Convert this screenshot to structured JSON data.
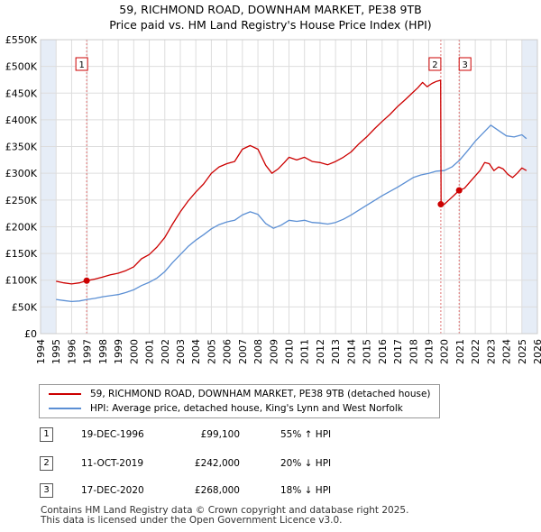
{
  "title": {
    "line1": "59, RICHMOND ROAD, DOWNHAM MARKET, PE38 9TB",
    "line2": "Price paid vs. HM Land Registry's House Price Index (HPI)"
  },
  "colors": {
    "property": "#cc0000",
    "hpi": "#5b8fd4",
    "grid": "#dddddd",
    "plot_bg": "#ffffff",
    "shade": "#e6edf7",
    "vline": "#e07070"
  },
  "chart_data": {
    "type": "line",
    "title": "Price paid vs. HM Land Registry's House Price Index (HPI)",
    "xlabel": "",
    "ylabel": "",
    "xlim": [
      1994,
      2026
    ],
    "ylim": [
      0,
      550000
    ],
    "grid": true,
    "y_ticks": [
      0,
      50000,
      100000,
      150000,
      200000,
      250000,
      300000,
      350000,
      400000,
      450000,
      500000,
      550000
    ],
    "y_tick_labels": [
      "£0",
      "£50K",
      "£100K",
      "£150K",
      "£200K",
      "£250K",
      "£300K",
      "£350K",
      "£400K",
      "£450K",
      "£500K",
      "£550K"
    ],
    "x_ticks": [
      1994,
      1995,
      1996,
      1997,
      1998,
      1999,
      2000,
      2001,
      2002,
      2003,
      2004,
      2005,
      2006,
      2007,
      2008,
      2009,
      2010,
      2011,
      2012,
      2013,
      2014,
      2015,
      2016,
      2017,
      2018,
      2019,
      2020,
      2021,
      2022,
      2023,
      2024,
      2025,
      2026
    ],
    "x_tick_labels": [
      "1994",
      "1995",
      "1996",
      "1997",
      "1998",
      "1999",
      "2000",
      "2001",
      "2002",
      "2003",
      "2004",
      "2005",
      "2006",
      "2007",
      "2008",
      "2009",
      "2010",
      "2011",
      "2012",
      "2013",
      "2014",
      "2015",
      "2016",
      "2017",
      "2018",
      "2019",
      "2020",
      "2021",
      "2022",
      "2023",
      "2024",
      "2025",
      "2026"
    ],
    "shaded_regions": [
      {
        "from": 1994,
        "to": 1995
      },
      {
        "from": 2025,
        "to": 2026
      }
    ],
    "series": [
      {
        "name": "59, RICHMOND ROAD, DOWNHAM MARKET, PE38 9TB (detached house)",
        "x": [
          1995.0,
          1995.5,
          1996.0,
          1996.5,
          1996.97,
          1997.5,
          1998.0,
          1998.5,
          1999.0,
          1999.5,
          2000.0,
          2000.5,
          2001.0,
          2001.5,
          2002.0,
          2002.5,
          2003.0,
          2003.5,
          2004.0,
          2004.5,
          2005.0,
          2005.5,
          2006.0,
          2006.5,
          2007.0,
          2007.5,
          2008.0,
          2008.5,
          2008.9,
          2009.3,
          2009.7,
          2010.0,
          2010.5,
          2011.0,
          2011.5,
          2012.0,
          2012.5,
          2013.0,
          2013.5,
          2014.0,
          2014.5,
          2015.0,
          2015.5,
          2016.0,
          2016.5,
          2017.0,
          2017.5,
          2018.0,
          2018.3,
          2018.6,
          2018.9,
          2019.2,
          2019.5,
          2019.77,
          2019.8,
          2020.0,
          2020.3,
          2020.6,
          2020.96,
          2021.3,
          2021.6,
          2022.0,
          2022.3,
          2022.6,
          2022.9,
          2023.2,
          2023.5,
          2023.8,
          2024.1,
          2024.4,
          2024.7,
          2025.0,
          2025.3
        ],
        "y": [
          98000,
          95000,
          93000,
          95000,
          99100,
          102000,
          106000,
          110000,
          113000,
          118000,
          125000,
          140000,
          148000,
          162000,
          180000,
          205000,
          228000,
          248000,
          265000,
          280000,
          300000,
          312000,
          318000,
          322000,
          345000,
          352000,
          345000,
          315000,
          300000,
          308000,
          320000,
          330000,
          325000,
          330000,
          322000,
          320000,
          316000,
          322000,
          330000,
          340000,
          355000,
          368000,
          383000,
          397000,
          410000,
          425000,
          438000,
          452000,
          460000,
          470000,
          462000,
          468000,
          472000,
          474000,
          242000,
          242000,
          250000,
          258000,
          268000,
          272000,
          282000,
          295000,
          305000,
          320000,
          318000,
          305000,
          312000,
          308000,
          298000,
          292000,
          300000,
          310000,
          305000
        ]
      },
      {
        "name": "HPI: Average price, detached house, King's Lynn and West Norfolk",
        "x": [
          1995.0,
          1995.5,
          1996.0,
          1996.5,
          1997.0,
          1997.5,
          1998.0,
          1998.5,
          1999.0,
          1999.5,
          2000.0,
          2000.5,
          2001.0,
          2001.5,
          2002.0,
          2002.5,
          2003.0,
          2003.5,
          2004.0,
          2004.5,
          2005.0,
          2005.5,
          2006.0,
          2006.5,
          2007.0,
          2007.5,
          2008.0,
          2008.5,
          2009.0,
          2009.5,
          2010.0,
          2010.5,
          2011.0,
          2011.5,
          2012.0,
          2012.5,
          2013.0,
          2013.5,
          2014.0,
          2014.5,
          2015.0,
          2015.5,
          2016.0,
          2016.5,
          2017.0,
          2017.5,
          2018.0,
          2018.5,
          2019.0,
          2019.5,
          2020.0,
          2020.5,
          2021.0,
          2021.5,
          2022.0,
          2022.5,
          2023.0,
          2023.5,
          2024.0,
          2024.5,
          2025.0,
          2025.3
        ],
        "y": [
          64000,
          62000,
          60000,
          61000,
          64000,
          66000,
          69000,
          71000,
          73000,
          77000,
          82000,
          90000,
          96000,
          104000,
          116000,
          133000,
          148000,
          163000,
          175000,
          185000,
          196000,
          204000,
          209000,
          212000,
          222000,
          228000,
          223000,
          206000,
          197000,
          203000,
          212000,
          210000,
          212000,
          208000,
          207000,
          205000,
          208000,
          214000,
          222000,
          231000,
          240000,
          249000,
          258000,
          266000,
          274000,
          283000,
          292000,
          297000,
          300000,
          304000,
          305000,
          312000,
          325000,
          342000,
          360000,
          375000,
          390000,
          380000,
          370000,
          368000,
          372000,
          365000
        ]
      }
    ],
    "sale_markers": [
      {
        "label": "1",
        "x": 1996.97,
        "y": 99100
      },
      {
        "label": "2",
        "x": 2019.78,
        "y": 242000
      },
      {
        "label": "3",
        "x": 2020.96,
        "y": 268000
      }
    ]
  },
  "legend": {
    "property_label": "59, RICHMOND ROAD, DOWNHAM MARKET, PE38 9TB (detached house)",
    "hpi_label": "HPI: Average price, detached house, King's Lynn and West Norfolk"
  },
  "transactions": [
    {
      "num": "1",
      "date": "19-DEC-1996",
      "price": "£99,100",
      "hpi": "55% ↑ HPI"
    },
    {
      "num": "2",
      "date": "11-OCT-2019",
      "price": "£242,000",
      "hpi": "20% ↓ HPI"
    },
    {
      "num": "3",
      "date": "17-DEC-2020",
      "price": "£268,000",
      "hpi": "18% ↓ HPI"
    }
  ],
  "footer": {
    "line1": "Contains HM Land Registry data © Crown copyright and database right 2025.",
    "line2": "This data is licensed under the Open Government Licence v3.0."
  }
}
